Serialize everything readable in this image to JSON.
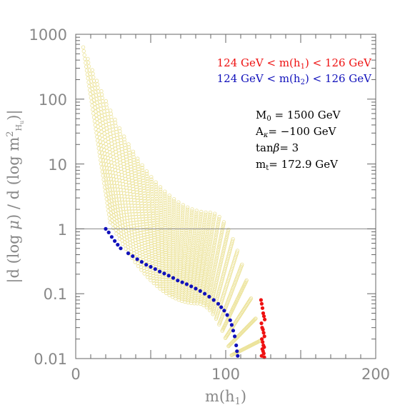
{
  "chart_data": {
    "type": "scatter",
    "title": "",
    "xlabel": "m(h1)",
    "ylabel": "|d (log μ) / d (log m²Hu)|",
    "xlim": [
      0,
      200
    ],
    "ylim": [
      0.01,
      1000
    ],
    "yscale": "log",
    "x_ticks": [
      "0",
      "100",
      "200"
    ],
    "y_ticks": [
      "0.01",
      "0.1",
      "1",
      "10",
      "100",
      "1000"
    ],
    "reference_line_y": 1,
    "legend": {
      "placement": "top-right",
      "entries": [
        {
          "text": "124 GeV < m(h1) < 126 GeV",
          "color": "#ee1111"
        },
        {
          "text": "124 GeV < m(h2) < 126 GeV",
          "color": "#1111bb"
        }
      ]
    },
    "parameters": [
      "M0 = 1500 GeV",
      "Aκ= −100 GeV",
      "tanβ= 3",
      "mt= 172.9 GeV"
    ],
    "series": [
      {
        "name": "124 GeV < m(h2) < 126 GeV",
        "color": "#1111bb",
        "x": [
          20,
          22,
          24,
          26,
          28,
          30,
          35,
          38,
          41,
          44,
          47,
          50,
          53,
          56,
          59,
          62,
          65,
          68,
          71,
          74,
          77,
          80,
          83,
          86,
          89,
          92,
          95,
          97,
          99,
          101,
          103,
          104,
          105,
          106,
          107,
          107.5,
          108
        ],
        "y": [
          1.0,
          0.88,
          0.75,
          0.65,
          0.57,
          0.5,
          0.42,
          0.38,
          0.34,
          0.31,
          0.28,
          0.26,
          0.24,
          0.22,
          0.205,
          0.19,
          0.175,
          0.16,
          0.15,
          0.14,
          0.13,
          0.12,
          0.11,
          0.1,
          0.09,
          0.08,
          0.07,
          0.062,
          0.055,
          0.047,
          0.039,
          0.033,
          0.027,
          0.022,
          0.016,
          0.013,
          0.011
        ]
      },
      {
        "name": "124 GeV < m(h1) < 126 GeV",
        "color": "#ee1111",
        "x": [
          123.5,
          124,
          124.5,
          125,
          125.5,
          126,
          123.8,
          124.3,
          124.8,
          125.3,
          125.8,
          124.1,
          124.6,
          125.1,
          125.6,
          124.4,
          124.9,
          125.4,
          123.9,
          125.7
        ],
        "y": [
          0.08,
          0.07,
          0.06,
          0.05,
          0.045,
          0.04,
          0.035,
          0.03,
          0.028,
          0.025,
          0.022,
          0.02,
          0.018,
          0.016,
          0.015,
          0.014,
          0.013,
          0.012,
          0.011,
          0.0105
        ]
      }
    ]
  }
}
